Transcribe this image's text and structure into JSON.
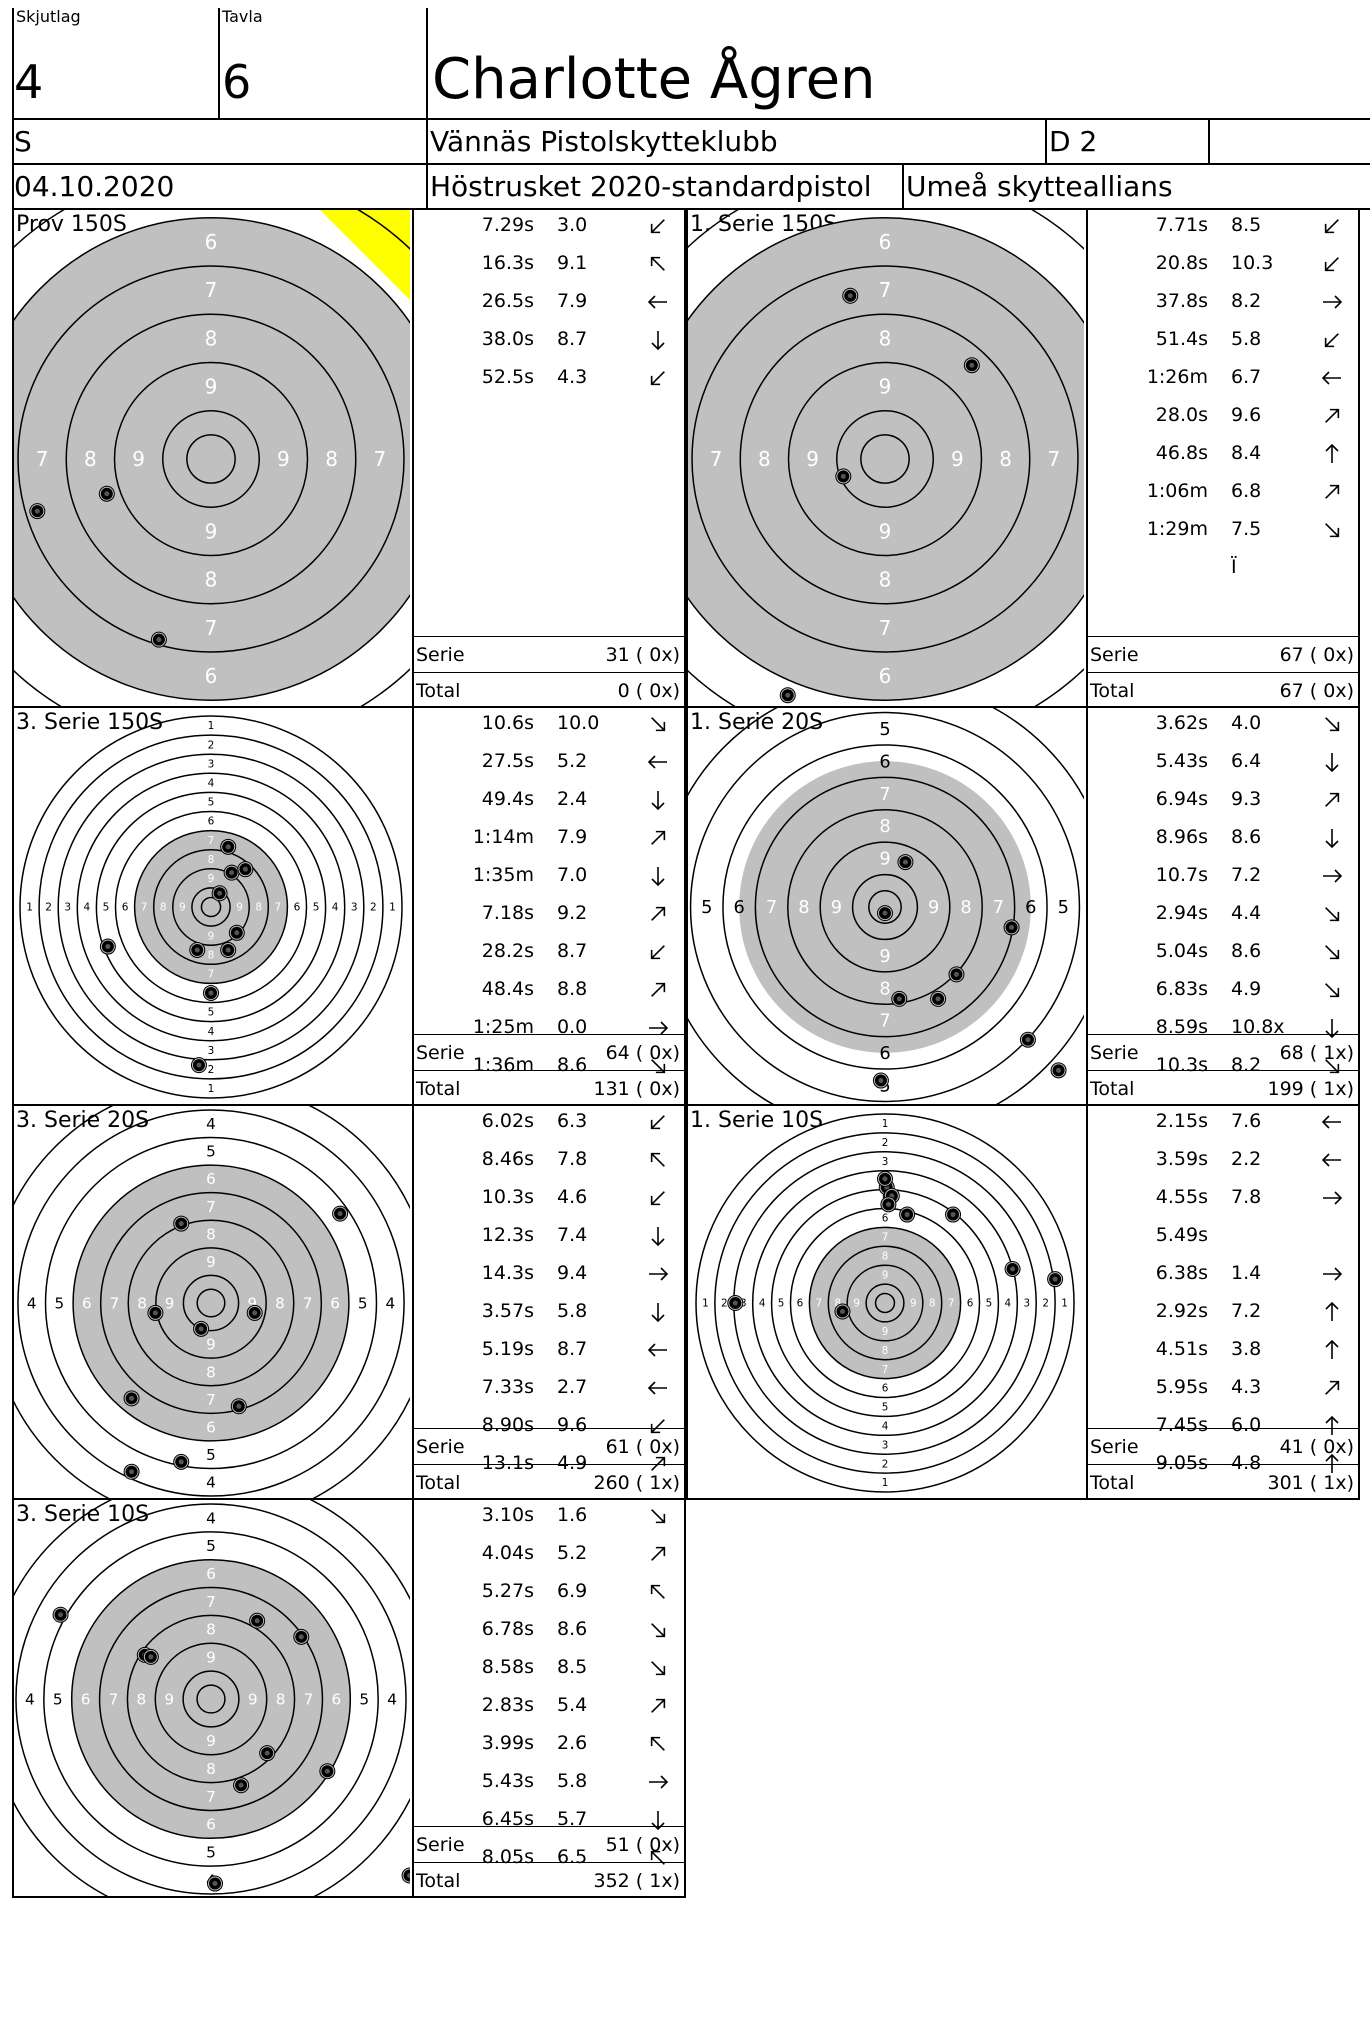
{
  "header": {
    "skjutlag_label": "Skjutlag",
    "skjutlag": "4",
    "tavla_label": "Tavla",
    "tavla": "6",
    "name": "Charlotte Ågren",
    "klass": "S",
    "club": "Vännäs Pistolskytteklubb",
    "division": "D 2",
    "date": "04.10.2020",
    "competition": "Höstrusket 2020-standardpistol",
    "organizer": "Umeå skytteallians"
  },
  "labels": {
    "serie": "Serie",
    "total": "Total"
  },
  "panels": [
    {
      "title": "Prov 150S",
      "scale": "150",
      "shots": [
        {
          "t": "7.29s",
          "p": "3.0",
          "d": "sw"
        },
        {
          "t": "16.3s",
          "p": "9.1",
          "d": "nw"
        },
        {
          "t": "26.5s",
          "p": "7.9",
          "d": "w"
        },
        {
          "t": "38.0s",
          "p": "8.7",
          "d": "s"
        },
        {
          "t": "52.5s",
          "p": "4.3",
          "d": "sw"
        }
      ],
      "serie": "31 ( 0x)",
      "total": "0 ( 0x)"
    },
    {
      "title": "1. Serie 150S",
      "scale": "150",
      "shots": [
        {
          "t": "7.71s",
          "p": "8.5",
          "d": "sw"
        },
        {
          "t": "20.8s",
          "p": "10.3",
          "d": "sw"
        },
        {
          "t": "37.8s",
          "p": "8.2",
          "d": "e"
        },
        {
          "t": "51.4s",
          "p": "5.8",
          "d": "sw"
        },
        {
          "t": "1:26m",
          "p": "6.7",
          "d": "w"
        },
        {
          "t": "28.0s",
          "p": "9.6",
          "d": "ne"
        },
        {
          "t": "46.8s",
          "p": "8.4",
          "d": "n"
        },
        {
          "t": "1:06m",
          "p": "6.8",
          "d": "ne"
        },
        {
          "t": "1:29m",
          "p": "7.5",
          "d": "se"
        },
        {
          "t": "",
          "p": "Ï",
          "d": ""
        }
      ],
      "serie": "67 ( 0x)",
      "total": "67 ( 0x)"
    },
    {
      "title": "3. Serie 150S",
      "scale": "full",
      "shots": [
        {
          "t": "10.6s",
          "p": "10.0",
          "d": "se"
        },
        {
          "t": "27.5s",
          "p": "5.2",
          "d": "w"
        },
        {
          "t": "49.4s",
          "p": "2.4",
          "d": "s"
        },
        {
          "t": "1:14m",
          "p": "7.9",
          "d": "ne"
        },
        {
          "t": "1:35m",
          "p": "7.0",
          "d": "s"
        },
        {
          "t": "7.18s",
          "p": "9.2",
          "d": "ne"
        },
        {
          "t": "28.2s",
          "p": "8.7",
          "d": "sw"
        },
        {
          "t": "48.4s",
          "p": "8.8",
          "d": "ne"
        },
        {
          "t": "1:25m",
          "p": "0.0",
          "d": "e"
        },
        {
          "t": "1:36m",
          "p": "8.6",
          "d": "se"
        }
      ],
      "serie": "64 ( 0x)",
      "total": "131 ( 0x)"
    },
    {
      "title": "1. Serie 20S",
      "scale": "20",
      "shots": [
        {
          "t": "3.62s",
          "p": "4.0",
          "d": "se"
        },
        {
          "t": "5.43s",
          "p": "6.4",
          "d": "s"
        },
        {
          "t": "6.94s",
          "p": "9.3",
          "d": "ne"
        },
        {
          "t": "8.96s",
          "p": "8.6",
          "d": "s"
        },
        {
          "t": "10.7s",
          "p": "7.2",
          "d": "e"
        },
        {
          "t": "2.94s",
          "p": "4.4",
          "d": "se"
        },
        {
          "t": "5.04s",
          "p": "8.6",
          "d": "se"
        },
        {
          "t": "6.83s",
          "p": "4.9",
          "d": "se"
        },
        {
          "t": "8.59s",
          "p": "10.8x",
          "d": "s"
        },
        {
          "t": "10.3s",
          "p": "8.2",
          "d": "se"
        }
      ],
      "serie": "68 ( 1x)",
      "total": "199 ( 1x)"
    },
    {
      "title": "3. Serie 20S",
      "scale": "3",
      "shots": [
        {
          "t": "6.02s",
          "p": "6.3",
          "d": "sw"
        },
        {
          "t": "8.46s",
          "p": "7.8",
          "d": "nw"
        },
        {
          "t": "10.3s",
          "p": "4.6",
          "d": "sw"
        },
        {
          "t": "12.3s",
          "p": "7.4",
          "d": "s"
        },
        {
          "t": "14.3s",
          "p": "9.4",
          "d": "e"
        },
        {
          "t": "3.57s",
          "p": "5.8",
          "d": "s"
        },
        {
          "t": "5.19s",
          "p": "8.7",
          "d": "w"
        },
        {
          "t": "7.33s",
          "p": "2.7",
          "d": "w"
        },
        {
          "t": "8.90s",
          "p": "9.6",
          "d": "sw"
        },
        {
          "t": "13.1s",
          "p": "4.9",
          "d": "ne"
        }
      ],
      "serie": "61 ( 0x)",
      "total": "260 ( 1x)"
    },
    {
      "title": "1. Serie 10S",
      "scale": "full",
      "shots": [
        {
          "t": "2.15s",
          "p": "7.6",
          "d": "w"
        },
        {
          "t": "3.59s",
          "p": "2.2",
          "d": "w"
        },
        {
          "t": "4.55s",
          "p": "7.8",
          "d": "e"
        },
        {
          "t": "5.49s",
          "p": "",
          "d": ""
        },
        {
          "t": "6.38s",
          "p": "1.4",
          "d": "e"
        },
        {
          "t": "2.92s",
          "p": "7.2",
          "d": "n"
        },
        {
          "t": "4.51s",
          "p": "3.8",
          "d": "n"
        },
        {
          "t": "5.95s",
          "p": "4.3",
          "d": "ne"
        },
        {
          "t": "7.45s",
          "p": "6.0",
          "d": "n"
        },
        {
          "t": "9.05s",
          "p": "4.8",
          "d": "n"
        }
      ],
      "serie": "41 ( 0x)",
      "total": "301 ( 1x)"
    },
    {
      "title": "3. Serie 10S",
      "scale": "3",
      "shots": [
        {
          "t": "3.10s",
          "p": "1.6",
          "d": "se"
        },
        {
          "t": "4.04s",
          "p": "5.2",
          "d": "ne"
        },
        {
          "t": "5.27s",
          "p": "6.9",
          "d": "nw"
        },
        {
          "t": "6.78s",
          "p": "8.6",
          "d": "se"
        },
        {
          "t": "8.58s",
          "p": "8.5",
          "d": "se"
        },
        {
          "t": "2.83s",
          "p": "5.4",
          "d": "ne"
        },
        {
          "t": "3.99s",
          "p": "2.6",
          "d": "nw"
        },
        {
          "t": "5.43s",
          "p": "5.8",
          "d": "e"
        },
        {
          "t": "6.45s",
          "p": "5.7",
          "d": "s"
        },
        {
          "t": "8.05s",
          "p": "6.5",
          "d": "nw"
        }
      ],
      "serie": "51 ( 0x)",
      "total": "352 ( 1x)"
    }
  ],
  "colors": {
    "grey": "#c0c0c0",
    "warning": "#ffff00"
  }
}
